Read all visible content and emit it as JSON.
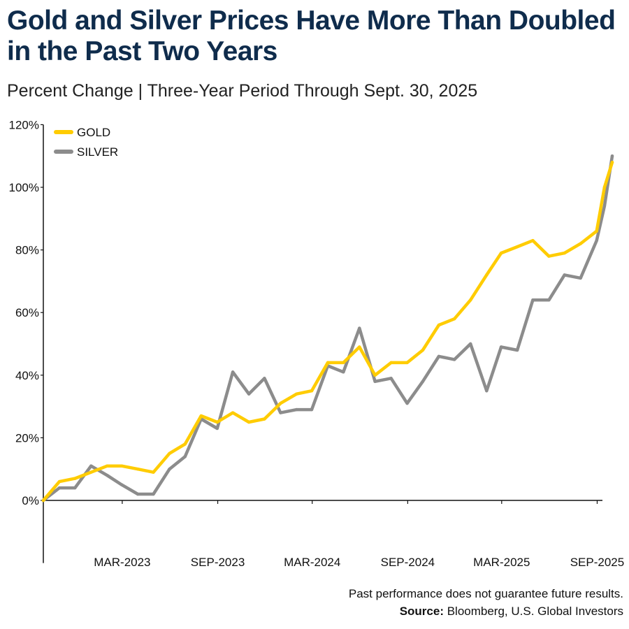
{
  "header": {
    "title": "Gold and Silver Prices Have More Than Doubled in the Past Two Years",
    "subtitle": "Percent Change | Three-Year Period Through Sept. 30, 2025"
  },
  "footer": {
    "disclaimer": "Past performance does not guarantee future results.",
    "source_label": "Source:",
    "source_text": " Bloomberg, U.S. Global Investors"
  },
  "chart_data": {
    "type": "line",
    "title": "",
    "xlabel": "",
    "ylabel": "",
    "ylim": [
      -20,
      120
    ],
    "xlim": [
      "2022-09-30",
      "2025-09-30"
    ],
    "y_ticks": [
      "0%",
      "20%",
      "40%",
      "60%",
      "80%",
      "100%",
      "120%"
    ],
    "y_tick_values": [
      0,
      20,
      40,
      60,
      80,
      100,
      120
    ],
    "x_ticks": [
      "MAR-2023",
      "SEP-2023",
      "MAR-2024",
      "SEP-2024",
      "MAR-2025",
      "SEP-2025"
    ],
    "x_tick_dates": [
      "2023-03-01",
      "2023-09-01",
      "2024-03-01",
      "2024-09-01",
      "2025-03-01",
      "2025-09-01"
    ],
    "grid": false,
    "legend_position": "top-left",
    "x": [
      "2022-09-30",
      "2022-10-31",
      "2022-11-30",
      "2022-12-31",
      "2023-01-31",
      "2023-02-28",
      "2023-03-31",
      "2023-04-30",
      "2023-05-31",
      "2023-06-30",
      "2023-07-31",
      "2023-08-31",
      "2023-09-30",
      "2023-10-31",
      "2023-11-30",
      "2023-12-31",
      "2024-01-31",
      "2024-02-29",
      "2024-03-31",
      "2024-04-30",
      "2024-05-31",
      "2024-06-30",
      "2024-07-31",
      "2024-08-31",
      "2024-09-30",
      "2024-10-31",
      "2024-11-30",
      "2024-12-31",
      "2025-01-31",
      "2025-02-28",
      "2025-03-31",
      "2025-04-30",
      "2025-05-31",
      "2025-06-30",
      "2025-07-31",
      "2025-08-31",
      "2025-09-15",
      "2025-09-30"
    ],
    "series": [
      {
        "name": "GOLD",
        "color": "#ffcc00",
        "values": [
          0,
          6,
          7,
          9,
          11,
          11,
          10,
          9,
          15,
          18,
          27,
          25,
          28,
          25,
          26,
          31,
          34,
          35,
          44,
          44,
          49,
          40,
          44,
          44,
          48,
          56,
          58,
          64,
          72,
          79,
          81,
          83,
          78,
          79,
          82,
          86,
          100,
          108
        ]
      },
      {
        "name": "SILVER",
        "color": "#8c8c8c",
        "values": [
          0,
          4,
          4,
          11,
          8,
          5,
          2,
          2,
          10,
          14,
          26,
          23,
          41,
          34,
          39,
          28,
          29,
          29,
          43,
          41,
          55,
          38,
          39,
          31,
          38,
          46,
          45,
          50,
          35,
          49,
          48,
          64,
          64,
          72,
          71,
          83,
          94,
          110
        ]
      }
    ]
  }
}
